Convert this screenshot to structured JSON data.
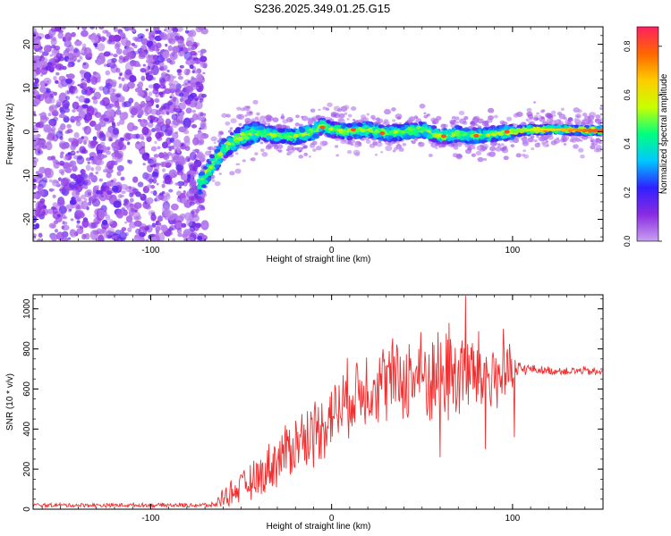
{
  "title": "S236.2025.349.01.25.G15",
  "chart_data": [
    {
      "type": "heatmap",
      "name": "spectrogram",
      "xlabel": "Height of straight line (km)",
      "ylabel": "Frequency (Hz)",
      "xlim": [
        -165,
        150
      ],
      "ylim": [
        -25,
        24
      ],
      "xticks": [
        -100,
        0,
        100
      ],
      "yticks": [
        -20,
        -10,
        0,
        10,
        20
      ],
      "colorbar": {
        "label": "Normalized spectral amplitude",
        "range": [
          0,
          0.88
        ],
        "ticks": [
          0.0,
          0.2,
          0.4,
          0.6,
          0.8
        ],
        "colormap": [
          "#c8a0f0",
          "#8a2be2",
          "#3020ff",
          "#00c8ff",
          "#00ff80",
          "#c8ff00",
          "#ffcc00",
          "#ff6600",
          "#ff2060"
        ]
      },
      "noise_region_km": [
        -165,
        -73
      ],
      "signal_onset_km": -73,
      "ridge": {
        "x": [
          -73,
          -65,
          -60,
          -50,
          -40,
          -30,
          -20,
          -10,
          -5,
          0,
          10,
          20,
          30,
          40,
          50,
          60,
          70,
          80,
          90,
          100,
          110,
          120,
          130,
          140,
          150
        ],
        "y": [
          -12,
          -7,
          -4,
          -1,
          0,
          -1,
          -1,
          0,
          1.5,
          0.5,
          0,
          0.5,
          -0.5,
          0,
          0.5,
          -1,
          -0.5,
          -1,
          -0.5,
          0,
          0.5,
          0.5,
          0.5,
          0.3,
          0.3
        ]
      }
    },
    {
      "type": "line",
      "name": "snr",
      "xlabel": "Height of straight line (km)",
      "ylabel": "SNR (10 * v/v)",
      "xlim": [
        -165,
        150
      ],
      "ylim": [
        0,
        1070
      ],
      "xticks": [
        -100,
        0,
        100
      ],
      "yticks": [
        0,
        200,
        400,
        600,
        800,
        1000
      ],
      "color": "#ee3030",
      "envelope": {
        "x": [
          -165,
          -100,
          -65,
          -60,
          -50,
          -40,
          -30,
          -20,
          -10,
          0,
          10,
          20,
          30,
          40,
          50,
          60,
          70,
          80,
          90,
          100,
          105,
          110,
          120,
          130,
          140,
          150
        ],
        "mean": [
          20,
          20,
          20,
          60,
          110,
          160,
          250,
          330,
          380,
          470,
          560,
          620,
          640,
          650,
          660,
          660,
          680,
          670,
          660,
          670,
          700,
          700,
          690,
          690,
          690,
          680
        ],
        "amp": [
          12,
          12,
          15,
          60,
          90,
          120,
          160,
          180,
          200,
          200,
          220,
          230,
          240,
          250,
          270,
          280,
          300,
          250,
          230,
          150,
          40,
          25,
          25,
          25,
          25,
          25
        ]
      },
      "peak": {
        "x": 74,
        "y": 1065
      },
      "trough": {
        "x": 101,
        "y": 360
      }
    }
  ]
}
